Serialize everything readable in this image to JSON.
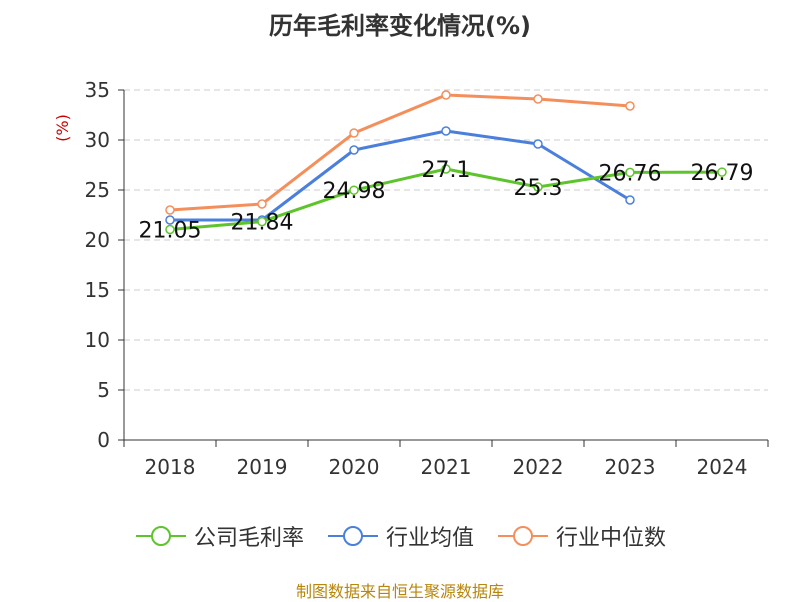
{
  "chart_data": {
    "type": "line",
    "title": "历年毛利率变化情况(%)",
    "ylabel": "(%)",
    "xlabel": "",
    "categories": [
      "2018",
      "2019",
      "2020",
      "2021",
      "2022",
      "2023",
      "2024"
    ],
    "ylim": [
      0,
      35
    ],
    "yticks": [
      0,
      5,
      10,
      15,
      20,
      25,
      30,
      35
    ],
    "grid": true,
    "legend_position": "bottom",
    "series": [
      {
        "name": "公司毛利率",
        "color": "#5ec42c",
        "values": [
          21.05,
          21.84,
          24.98,
          27.1,
          25.3,
          26.76,
          26.79
        ],
        "labels": [
          "21.05",
          "21.84",
          "24.98",
          "27.1",
          "25.3",
          "26.76",
          "26.79"
        ]
      },
      {
        "name": "行业均值",
        "color": "#4a7fdc",
        "values": [
          22.0,
          22.0,
          29.0,
          30.9,
          29.6,
          24.0,
          null
        ]
      },
      {
        "name": "行业中位数",
        "color": "#f48f5c",
        "values": [
          23.0,
          23.6,
          30.7,
          34.5,
          34.1,
          33.4,
          null
        ]
      }
    ]
  },
  "footer": {
    "source": "制图数据来自恒生聚源数据库"
  }
}
